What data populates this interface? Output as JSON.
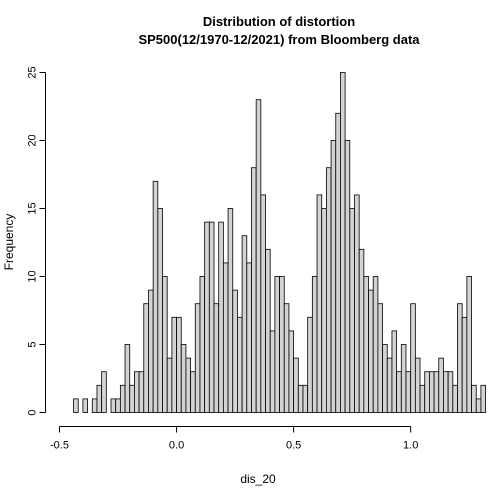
{
  "chart_data": {
    "type": "bar",
    "title": "Distribution of distortion",
    "subtitle": "SP500(12/1970-12/2021) from Bloomberg data",
    "xlabel": "dis_20",
    "ylabel": "Frequency",
    "xlim": [
      -0.5,
      1.2
    ],
    "ylim": [
      0,
      25
    ],
    "x_ticks": [
      -0.5,
      0.0,
      0.5,
      1.0
    ],
    "x_tick_labels": [
      "-0.5",
      "0.0",
      "0.5",
      "1.0"
    ],
    "y_ticks": [
      0,
      5,
      10,
      15,
      20,
      25
    ],
    "y_tick_labels": [
      "0",
      "5",
      "10",
      "15",
      "20",
      "25"
    ],
    "bin_start": -0.44,
    "bin_width": 0.02,
    "counts": [
      1,
      0,
      1,
      0,
      1,
      2,
      3,
      0,
      1,
      1,
      2,
      5,
      2,
      3,
      3,
      8,
      9,
      17,
      15,
      10,
      4,
      7,
      7,
      5,
      4,
      3,
      8,
      10,
      14,
      14,
      8,
      14,
      11,
      15,
      9,
      7,
      13,
      11,
      18,
      23,
      16,
      12,
      6,
      10,
      10,
      8,
      6,
      4,
      2,
      2,
      7,
      10,
      16,
      15,
      18,
      20,
      22,
      25,
      20,
      15,
      16,
      12,
      10,
      9,
      10,
      8,
      5,
      4,
      6,
      3,
      5,
      3,
      8,
      4,
      2,
      3,
      3,
      3,
      4,
      3,
      3,
      2,
      8,
      7,
      10,
      2,
      1,
      2
    ],
    "bar_color": "#d3d3d3",
    "grid": false
  }
}
